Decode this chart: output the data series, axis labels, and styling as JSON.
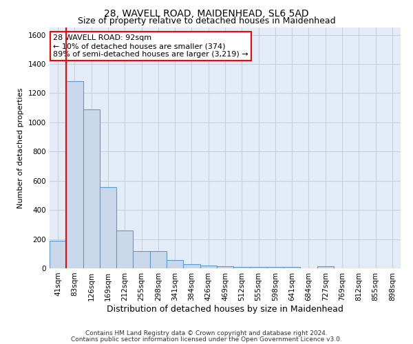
{
  "title": "28, WAVELL ROAD, MAIDENHEAD, SL6 5AD",
  "subtitle": "Size of property relative to detached houses in Maidenhead",
  "xlabel": "Distribution of detached houses by size in Maidenhead",
  "ylabel": "Number of detached properties",
  "categories": [
    "41sqm",
    "83sqm",
    "126sqm",
    "169sqm",
    "212sqm",
    "255sqm",
    "298sqm",
    "341sqm",
    "384sqm",
    "426sqm",
    "469sqm",
    "512sqm",
    "555sqm",
    "598sqm",
    "641sqm",
    "684sqm",
    "727sqm",
    "769sqm",
    "812sqm",
    "855sqm",
    "898sqm"
  ],
  "values": [
    190,
    1280,
    1090,
    555,
    260,
    120,
    120,
    55,
    30,
    20,
    15,
    10,
    10,
    10,
    10,
    0,
    15,
    0,
    0,
    0,
    0
  ],
  "bar_color": "#c8d8ea",
  "bar_edge_color": "#5b9bd5",
  "grid_color": "#c5d0e0",
  "background_color": "#e4ecf7",
  "annotation_text": "28 WAVELL ROAD: 92sqm\n← 10% of detached houses are smaller (374)\n89% of semi-detached houses are larger (3,219) →",
  "annotation_box_color": "white",
  "annotation_box_edge_color": "red",
  "vline_color": "red",
  "vline_x_index": 1,
  "ylim": [
    0,
    1650
  ],
  "yticks": [
    0,
    200,
    400,
    600,
    800,
    1000,
    1200,
    1400,
    1600
  ],
  "footer_line1": "Contains HM Land Registry data © Crown copyright and database right 2024.",
  "footer_line2": "Contains public sector information licensed under the Open Government Licence v3.0.",
  "title_fontsize": 10,
  "subtitle_fontsize": 9,
  "tick_fontsize": 7.5,
  "ylabel_fontsize": 8,
  "xlabel_fontsize": 9,
  "annotation_fontsize": 8
}
